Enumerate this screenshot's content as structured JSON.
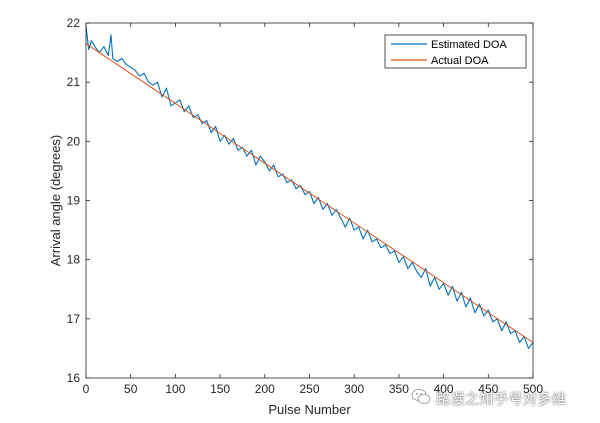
{
  "chart_data": {
    "type": "line",
    "title": "",
    "xlabel": "Pulse Number",
    "ylabel": "Arrival angle (degrees)",
    "xlim": [
      0,
      500
    ],
    "ylim": [
      16,
      22
    ],
    "xticks": [
      "0",
      "50",
      "100",
      "150",
      "200",
      "250",
      "300",
      "350",
      "400",
      "450",
      "500"
    ],
    "yticks": [
      "16",
      "17",
      "18",
      "19",
      "20",
      "21",
      "22"
    ],
    "grid": false,
    "legend_position": "top-right",
    "series": [
      {
        "name": "Estimated DOA",
        "color": "#0072BD",
        "style": "noisy fluctuation around actual DOA",
        "x": [
          0,
          3,
          6,
          10,
          15,
          20,
          25,
          28,
          30,
          35,
          40,
          45,
          50,
          55,
          60,
          65,
          70,
          75,
          80,
          85,
          90,
          95,
          100,
          105,
          110,
          115,
          120,
          125,
          130,
          135,
          140,
          145,
          150,
          155,
          160,
          165,
          170,
          175,
          180,
          185,
          190,
          195,
          200,
          205,
          210,
          215,
          220,
          225,
          230,
          235,
          240,
          245,
          250,
          255,
          260,
          265,
          270,
          275,
          280,
          285,
          290,
          295,
          300,
          305,
          310,
          315,
          320,
          325,
          330,
          335,
          340,
          345,
          350,
          355,
          360,
          365,
          370,
          375,
          380,
          385,
          390,
          395,
          400,
          405,
          410,
          415,
          420,
          425,
          430,
          435,
          440,
          445,
          450,
          455,
          460,
          465,
          470,
          475,
          480,
          485,
          490,
          495,
          500
        ],
        "y": [
          21.95,
          21.55,
          21.7,
          21.6,
          21.5,
          21.6,
          21.45,
          21.8,
          21.4,
          21.35,
          21.4,
          21.3,
          21.25,
          21.2,
          21.1,
          21.15,
          21.0,
          20.95,
          21.0,
          20.75,
          20.9,
          20.6,
          20.65,
          20.7,
          20.5,
          20.6,
          20.4,
          20.45,
          20.3,
          20.35,
          20.15,
          20.25,
          20.0,
          20.1,
          19.95,
          20.05,
          19.85,
          19.9,
          19.75,
          19.85,
          19.6,
          19.75,
          19.65,
          19.5,
          19.6,
          19.4,
          19.45,
          19.3,
          19.35,
          19.2,
          19.25,
          19.1,
          19.15,
          18.95,
          19.05,
          18.85,
          18.95,
          18.75,
          18.85,
          18.7,
          18.55,
          18.7,
          18.5,
          18.55,
          18.35,
          18.5,
          18.3,
          18.35,
          18.2,
          18.25,
          18.1,
          18.15,
          17.95,
          18.05,
          17.85,
          17.95,
          17.8,
          17.7,
          17.85,
          17.55,
          17.7,
          17.5,
          17.6,
          17.4,
          17.55,
          17.3,
          17.45,
          17.2,
          17.35,
          17.1,
          17.25,
          17.05,
          17.15,
          16.95,
          17.0,
          16.8,
          16.95,
          16.75,
          16.8,
          16.6,
          16.7,
          16.5,
          16.6
        ]
      },
      {
        "name": "Actual DOA",
        "color": "#D95319",
        "x": [
          0,
          500
        ],
        "y": [
          21.65,
          16.6
        ]
      }
    ]
  },
  "watermark": {
    "text": "路漫之知乎号对多维",
    "icon": "wechat-icon"
  }
}
